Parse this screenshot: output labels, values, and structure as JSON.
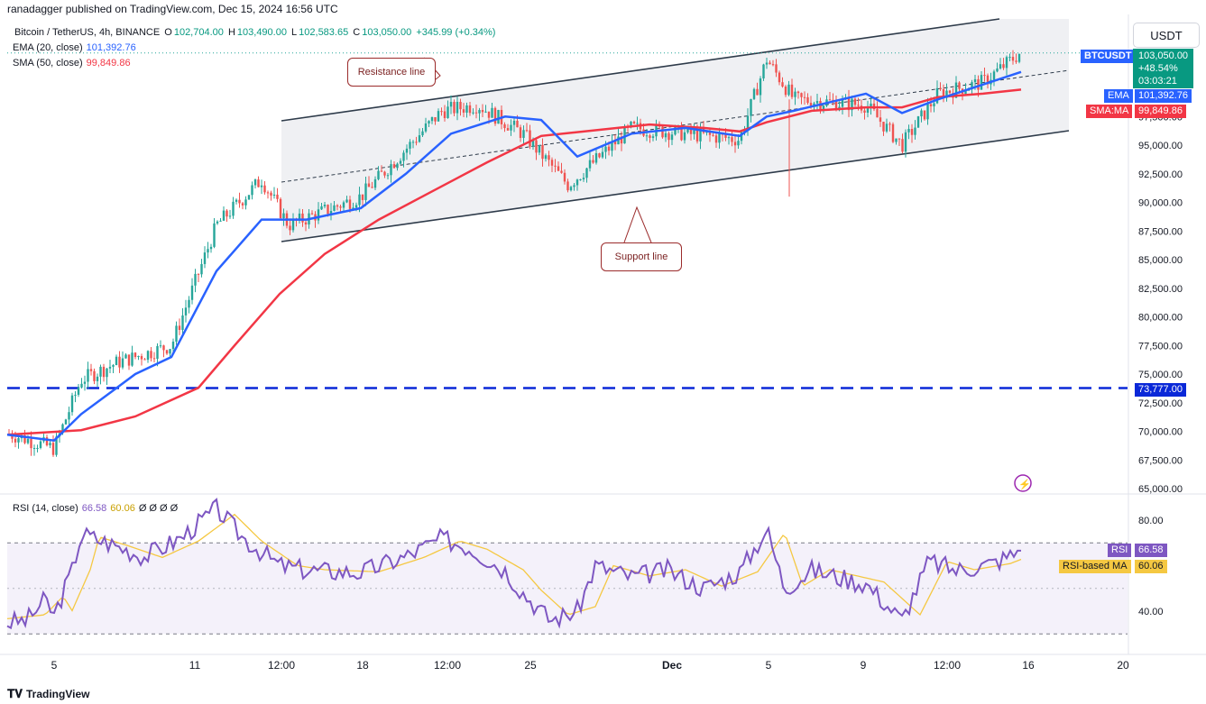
{
  "header": {
    "publisher": "ranadagger published on TradingView.com, Dec 15, 2024 16:56 UTC"
  },
  "legend": {
    "symbol": "Bitcoin / TetherUS, 4h, BINANCE",
    "open_label": "O",
    "open": "102,704.00",
    "high_label": "H",
    "high": "103,490.00",
    "low_label": "L",
    "low": "102,583.65",
    "close_label": "C",
    "close": "103,050.00",
    "change": "+345.99 (+0.34%)",
    "ema_label": "EMA (20, close)",
    "ema_value": "101,392.76",
    "sma_label": "SMA (50, close)",
    "sma_value": "99,849.86",
    "rsi_label": "RSI (14, close)",
    "rsi_value": "66.58",
    "rsi_ma_value": "60.06",
    "rsi_extra": "Ø Ø Ø Ø"
  },
  "currency_button": "USDT",
  "price_tags": {
    "ticker": "BTCUSDT",
    "price": "103,050.00",
    "pct": "+48.54%",
    "countdown": "03:03:21",
    "ema_tag": "EMA",
    "ema_value": "101,392.76",
    "sma_tag": "SMA:MA",
    "sma_value": "99,849.86",
    "level": "73,777.00",
    "rsi_tag": "RSI",
    "rsi_value": "66.58",
    "rsi_ma_tag": "RSI-based MA",
    "rsi_ma_value": "60.06"
  },
  "annotations": {
    "resistance": "Resistance line",
    "support": "Support line"
  },
  "footer": {
    "brand": "TradingView"
  },
  "colors": {
    "up": "#26a69a",
    "down": "#ef5350",
    "ema": "#2962ff",
    "sma": "#f23645",
    "level": "#0a28d8",
    "rsi": "#7e57c2",
    "rsi_ma": "#f5c842",
    "callout": "#9b2b2b"
  },
  "chart_data": {
    "type": "candlestick",
    "price_axis": {
      "ylim": [
        64200,
        106000
      ],
      "ticks": [
        65000,
        67500,
        70000,
        72500,
        75000,
        77500,
        80000,
        82500,
        85000,
        87500,
        90000,
        92500,
        95000,
        97500
      ],
      "tick_labels": [
        "65,000.00",
        "67,500.00",
        "70,000.00",
        "72,500.00",
        "75,000.00",
        "77,500.00",
        "80,000.00",
        "82,500.00",
        "85,000.00",
        "87,500.00",
        "90,000.00",
        "92,500.00",
        "95,000.00",
        "97,500.00"
      ]
    },
    "time_axis": {
      "labels": [
        "5",
        "11",
        "12:00",
        "18",
        "12:00",
        "25",
        "Dec",
        "5",
        "9",
        "12:00",
        "16",
        "20"
      ]
    },
    "horizontal_level": 73777,
    "ema_20_last": 101392.76,
    "sma_50_last": 99849.86,
    "last_close": 103050,
    "rsi": {
      "period": 14,
      "last": 66.58,
      "ma_last": 60.06,
      "ylim": [
        25,
        95
      ],
      "ticks": [
        40,
        80
      ],
      "tick_labels": [
        "40.00",
        "80.00"
      ],
      "bands": [
        70,
        30
      ]
    }
  }
}
